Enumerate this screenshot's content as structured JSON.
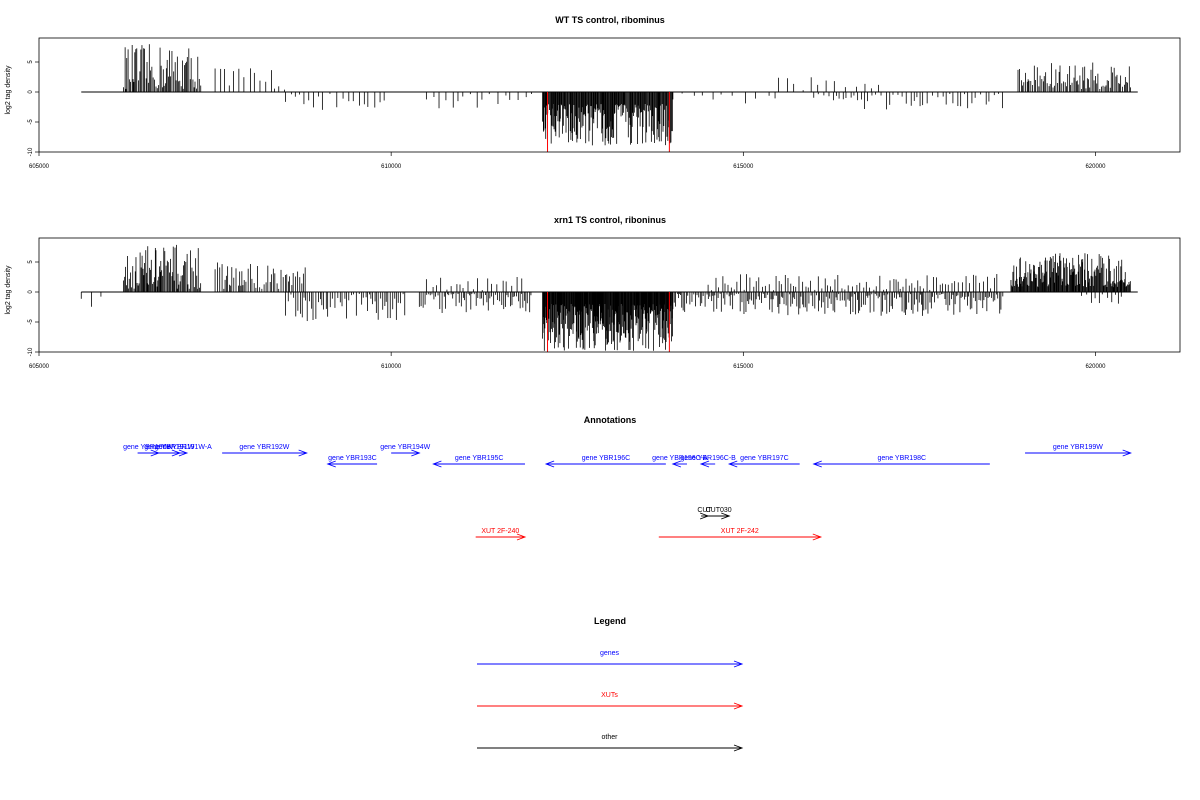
{
  "chart_data": [
    {
      "type": "bar",
      "title": "WT TS control, ribominus",
      "ylabel": "log2 tag density",
      "xlim": [
        605000,
        621200
      ],
      "ylim": [
        -10,
        9
      ],
      "xticks": [
        605000,
        610000,
        615000,
        620000
      ],
      "xtick_labels": [
        "605000",
        "610000",
        "615000",
        "620000"
      ],
      "yticks": [
        -10,
        -5,
        0,
        5
      ],
      "ytick_labels": [
        "-10",
        "-5",
        "0",
        "5"
      ],
      "baseline": {
        "x_start": 605600,
        "x_end": 620600
      },
      "marker_lines": {
        "color": "#ff0000",
        "x": [
          612220,
          613950
        ],
        "ymin": -10,
        "ymax": 0
      },
      "signal_regions": [
        {
          "x_start": 606200,
          "x_end": 607300,
          "min": 0.5,
          "max": 8.0,
          "sign": 1,
          "step": 18
        },
        {
          "x_start": 607500,
          "x_end": 608500,
          "min": 0.3,
          "max": 4.5,
          "sign": 1,
          "step": 70
        },
        {
          "x_start": 608500,
          "x_end": 610000,
          "min": 0.3,
          "max": 3.0,
          "sign": -1,
          "step": 80
        },
        {
          "x_start": 610500,
          "x_end": 612000,
          "min": 0.3,
          "max": 3.0,
          "sign": -1,
          "step": 90
        },
        {
          "x_start": 612150,
          "x_end": 614000,
          "min": 2.0,
          "max": 9.0,
          "sign": -1,
          "step": 10
        },
        {
          "x_start": 614000,
          "x_end": 615500,
          "min": 0.2,
          "max": 2.0,
          "sign": -1,
          "step": 140
        },
        {
          "x_start": 615500,
          "x_end": 617000,
          "min": 0.3,
          "max": 2.5,
          "sign": 1,
          "step": 120
        },
        {
          "x_start": 616000,
          "x_end": 618700,
          "min": 0.3,
          "max": 3.0,
          "sign": -1,
          "step": 60
        },
        {
          "x_start": 618900,
          "x_end": 620500,
          "min": 0.5,
          "max": 5.0,
          "sign": 1,
          "step": 20
        }
      ]
    },
    {
      "type": "bar",
      "title": "xrn1 TS control, riboninus",
      "ylabel": "log2 tag density",
      "xlim": [
        605000,
        621200
      ],
      "ylim": [
        -10,
        9
      ],
      "xticks": [
        605000,
        610000,
        615000,
        620000
      ],
      "xtick_labels": [
        "605000",
        "610000",
        "615000",
        "620000"
      ],
      "yticks": [
        -10,
        -5,
        0,
        5
      ],
      "ytick_labels": [
        "-10",
        "-5",
        "0",
        "5"
      ],
      "baseline": {
        "x_start": 605600,
        "x_end": 620600
      },
      "marker_lines": {
        "color": "#ff0000",
        "x": [
          612220,
          613950
        ],
        "ymin": -10,
        "ymax": 0
      },
      "signal_regions": [
        {
          "x_start": 605600,
          "x_end": 605900,
          "min": 0.5,
          "max": 2.5,
          "sign": -1,
          "step": 120
        },
        {
          "x_start": 606200,
          "x_end": 607300,
          "min": 0.5,
          "max": 8.0,
          "sign": 1,
          "step": 14
        },
        {
          "x_start": 607500,
          "x_end": 608800,
          "min": 0.5,
          "max": 5.0,
          "sign": 1,
          "step": 25
        },
        {
          "x_start": 608500,
          "x_end": 610200,
          "min": 0.3,
          "max": 5.0,
          "sign": -1,
          "step": 30
        },
        {
          "x_start": 610400,
          "x_end": 612000,
          "min": 0.3,
          "max": 3.5,
          "sign": -1,
          "step": 25
        },
        {
          "x_start": 610500,
          "x_end": 611900,
          "min": 0.3,
          "max": 2.5,
          "sign": 1,
          "step": 70
        },
        {
          "x_start": 612150,
          "x_end": 614000,
          "min": 2.0,
          "max": 10.0,
          "sign": -1,
          "step": 7
        },
        {
          "x_start": 614000,
          "x_end": 618700,
          "min": 0.3,
          "max": 4.0,
          "sign": -1,
          "step": 22
        },
        {
          "x_start": 614500,
          "x_end": 618600,
          "min": 0.3,
          "max": 3.0,
          "sign": 1,
          "step": 45
        },
        {
          "x_start": 618800,
          "x_end": 620500,
          "min": 0.8,
          "max": 6.5,
          "sign": 1,
          "step": 10
        },
        {
          "x_start": 619800,
          "x_end": 620400,
          "min": 0.3,
          "max": 2.0,
          "sign": -1,
          "step": 60
        }
      ]
    }
  ],
  "annotations": {
    "title": "Annotations",
    "features": [
      {
        "label": "gene YBR190W",
        "type": "gene",
        "strand": "+",
        "start": 606400,
        "end": 606700,
        "row": 0
      },
      {
        "label": "gene YBR191W",
        "type": "gene",
        "strand": "+",
        "start": 606700,
        "end": 607000,
        "row": 0
      },
      {
        "label": "gene YBR191W-A",
        "type": "gene",
        "strand": "+",
        "start": 607000,
        "end": 607100,
        "row": 0
      },
      {
        "label": "gene YBR192W",
        "type": "gene",
        "strand": "+",
        "start": 607600,
        "end": 608800,
        "row": 0
      },
      {
        "label": "gene YBR193C",
        "type": "gene",
        "strand": "-",
        "start": 609100,
        "end": 609800,
        "row": 1
      },
      {
        "label": "gene YBR194W",
        "type": "gene",
        "strand": "+",
        "start": 610000,
        "end": 610400,
        "row": 0
      },
      {
        "label": "gene YBR195C",
        "type": "gene",
        "strand": "-",
        "start": 610600,
        "end": 611900,
        "row": 1
      },
      {
        "label": "gene YBR196C",
        "type": "gene",
        "strand": "-",
        "start": 612200,
        "end": 613900,
        "row": 1
      },
      {
        "label": "gene YBR196C-A",
        "type": "gene",
        "strand": "-",
        "start": 614000,
        "end": 614200,
        "row": 1
      },
      {
        "label": "gene YBR196C-B",
        "type": "gene",
        "strand": "-",
        "start": 614400,
        "end": 614600,
        "row": 1
      },
      {
        "label": "gene YBR197C",
        "type": "gene",
        "strand": "-",
        "start": 614800,
        "end": 615800,
        "row": 1
      },
      {
        "label": "gene YBR198C",
        "type": "gene",
        "strand": "-",
        "start": 616000,
        "end": 618500,
        "row": 1
      },
      {
        "label": "gene YBR199W",
        "type": "gene",
        "strand": "+",
        "start": 619000,
        "end": 620500,
        "row": 0
      },
      {
        "label": "CUT",
        "type": "other",
        "strand": "+",
        "start": 614400,
        "end": 614500,
        "row": 3
      },
      {
        "label": "CUT030",
        "type": "other",
        "strand": "+",
        "start": 614500,
        "end": 614800,
        "row": 3
      },
      {
        "label": "XUT 2F-240",
        "type": "XUT",
        "strand": "+",
        "start": 611200,
        "end": 611900,
        "row": 4
      },
      {
        "label": "XUT 2F-242",
        "type": "XUT",
        "strand": "+",
        "start": 613800,
        "end": 616100,
        "row": 4
      }
    ]
  },
  "legend": {
    "title": "Legend",
    "items": [
      {
        "label": "genes",
        "color": "#0000ff"
      },
      {
        "label": "XUTs",
        "color": "#ff0000"
      },
      {
        "label": "other",
        "color": "#000000"
      }
    ]
  },
  "colors": {
    "gene": "#0000ff",
    "XUT": "#ff0000",
    "other": "#000000",
    "signal": "#000000"
  }
}
